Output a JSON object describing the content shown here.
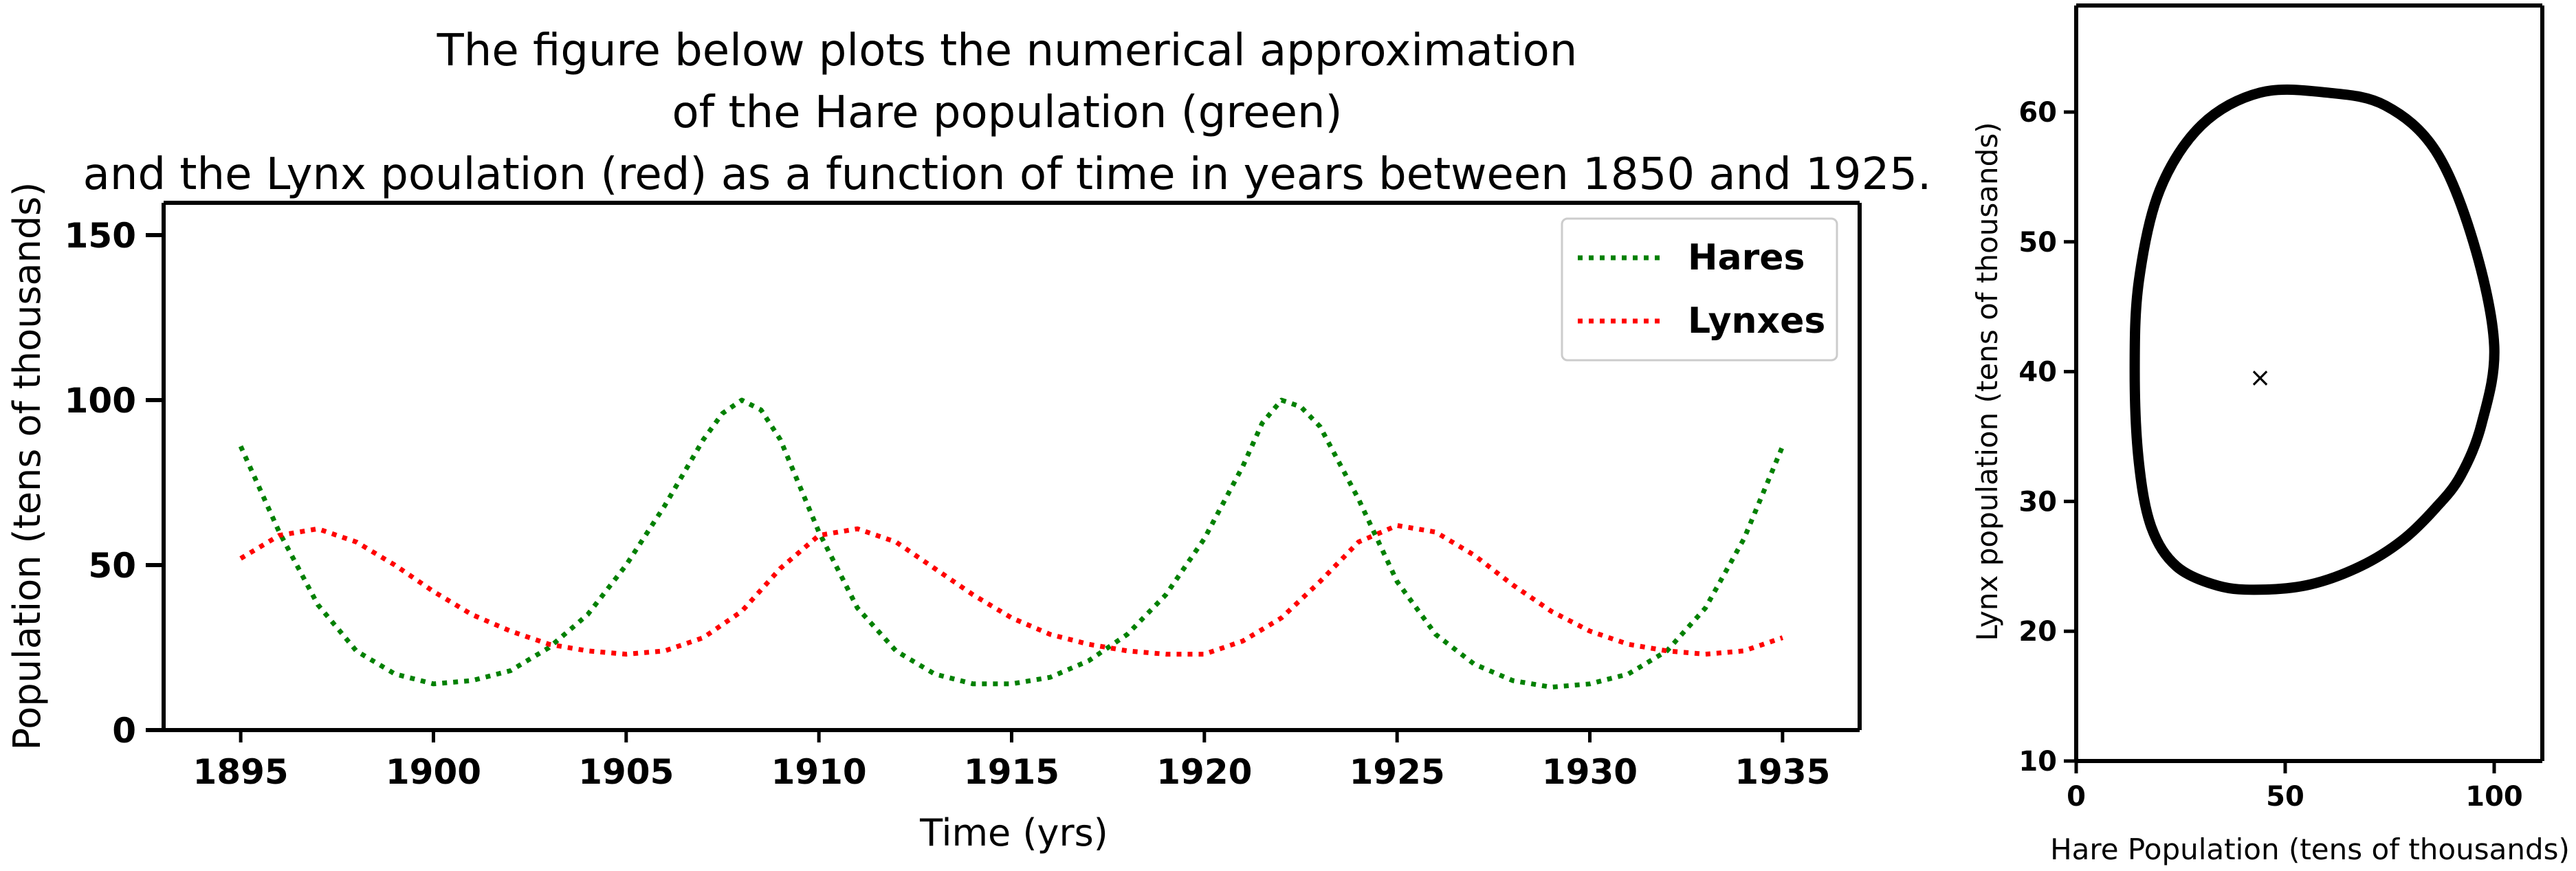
{
  "title_lines": [
    "The figure below plots the numerical approximation",
    "of the Hare population (green)",
    "and the Lynx poulation (red) as a function of time in years between 1850 and 1925."
  ],
  "colors": {
    "hares": "#008000",
    "lynxes": "#ff0000",
    "orbit": "#000000"
  },
  "chart_data": [
    {
      "type": "line",
      "xlabel": "Time (yrs)",
      "ylabel": "Population (tens of thousands)",
      "xlim": [
        1893,
        1937
      ],
      "ylim": [
        0,
        150
      ],
      "xticks": [
        1895,
        1900,
        1905,
        1910,
        1915,
        1920,
        1925,
        1930,
        1935
      ],
      "yticks": [
        0,
        50,
        100,
        150
      ],
      "legend_position": "top-right",
      "line_style": "dotted",
      "series": [
        {
          "name": "Hares",
          "color": "#008000",
          "x": [
            1895,
            1896,
            1897,
            1898,
            1899,
            1900,
            1901,
            1902,
            1903,
            1904,
            1905,
            1906,
            1907,
            1907.5,
            1908,
            1908.5,
            1909,
            1910,
            1911,
            1912,
            1913,
            1914,
            1915,
            1916,
            1917,
            1918,
            1919,
            1920,
            1921,
            1921.5,
            1922,
            1922.5,
            1923,
            1924,
            1925,
            1926,
            1927,
            1928,
            1929,
            1930,
            1931,
            1932,
            1933,
            1934,
            1935
          ],
          "values": [
            86,
            60,
            38,
            24,
            17,
            14,
            15,
            18,
            25,
            35,
            50,
            68,
            88,
            96,
            100,
            97,
            88,
            60,
            37,
            24,
            17,
            14,
            14,
            16,
            21,
            29,
            41,
            58,
            80,
            93,
            100,
            98,
            92,
            70,
            45,
            29,
            20,
            15,
            13,
            14,
            17,
            24,
            37,
            58,
            86
          ]
        },
        {
          "name": "Lynxes",
          "color": "#ff0000",
          "x": [
            1895,
            1896,
            1897,
            1898,
            1899,
            1900,
            1901,
            1902,
            1903,
            1904,
            1905,
            1906,
            1907,
            1908,
            1909,
            1910,
            1911,
            1912,
            1913,
            1914,
            1915,
            1916,
            1917,
            1918,
            1919,
            1920,
            1921,
            1922,
            1923,
            1924,
            1925,
            1926,
            1927,
            1928,
            1929,
            1930,
            1931,
            1932,
            1933,
            1934,
            1935
          ],
          "values": [
            52,
            59,
            61,
            57,
            50,
            42,
            35,
            30,
            26,
            24,
            23,
            24,
            28,
            36,
            49,
            59,
            61,
            57,
            49,
            41,
            34,
            29,
            26,
            24,
            23,
            23,
            27,
            34,
            45,
            57,
            62,
            60,
            53,
            44,
            36,
            30,
            26,
            24,
            23,
            24,
            28
          ]
        }
      ]
    },
    {
      "type": "line",
      "xlabel": "Hare Population (tens of thousands)",
      "ylabel": "Lynx population (tens of thousands)",
      "xlim": [
        0,
        110
      ],
      "ylim": [
        10,
        68
      ],
      "xticks": [
        0,
        50,
        100
      ],
      "yticks": [
        10,
        20,
        30,
        40,
        50,
        60
      ],
      "equilibrium_point": {
        "x": 44,
        "y": 39.5,
        "marker": "×"
      },
      "series": [
        {
          "x": [
            100,
            95,
            86,
            74,
            60,
            44,
            30,
            20,
            15,
            14,
            15,
            18,
            24,
            34,
            44,
            56,
            68,
            78,
            86,
            92,
            97,
            100
          ],
          "values": [
            42,
            50,
            57,
            60.5,
            61.5,
            61.5,
            59,
            54,
            47,
            40,
            33,
            28,
            25,
            23.5,
            23.2,
            23.6,
            25,
            27,
            29.5,
            32,
            36,
            42
          ]
        }
      ]
    }
  ]
}
